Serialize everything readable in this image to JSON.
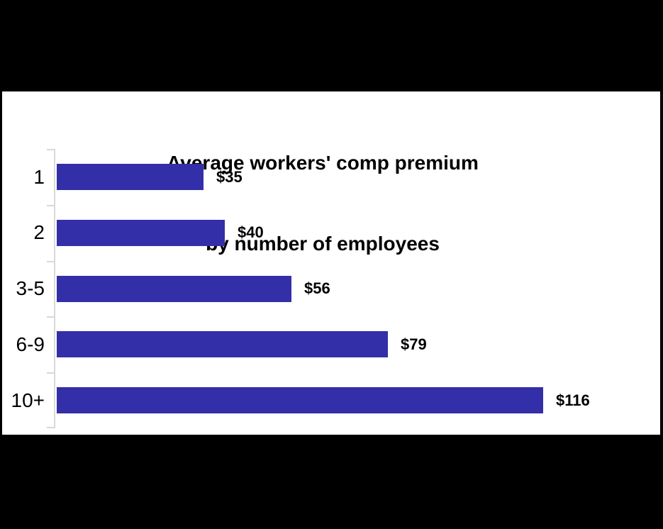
{
  "canvas": {
    "background_color": "#000000",
    "panel_color": "#ffffff"
  },
  "chart_data": {
    "type": "bar",
    "orientation": "horizontal",
    "title": "Average workers' comp premium by number of employees",
    "title_lines": [
      "Average workers' comp premium",
      "by number of employees"
    ],
    "categories": [
      "1",
      "2",
      "3-5",
      "6-9",
      "10+"
    ],
    "values": [
      35,
      40,
      56,
      79,
      116
    ],
    "value_labels": [
      "$35",
      "$40",
      "$56",
      "$79",
      "$116"
    ],
    "xlabel": "",
    "ylabel": "",
    "xlim": [
      0,
      125
    ],
    "grid": false,
    "legend": "none",
    "bar_color": "#332FA8",
    "axis_color": "#D9D9D9",
    "text_color": "#000000"
  }
}
